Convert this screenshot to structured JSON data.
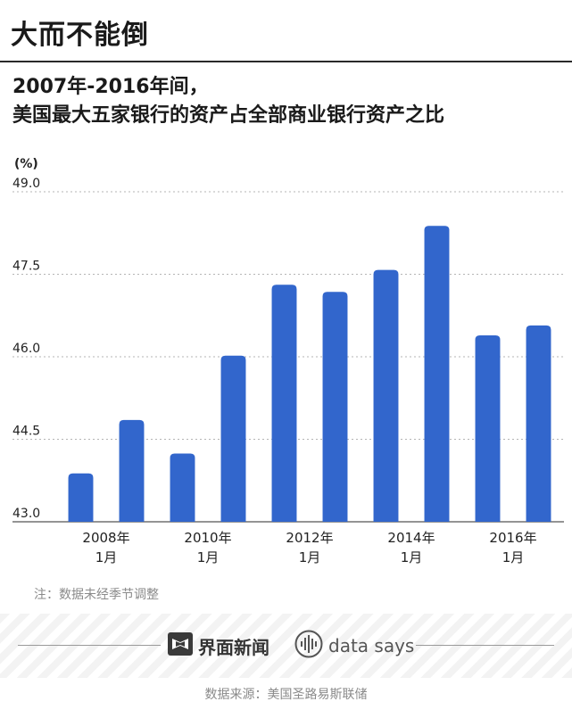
{
  "header": {
    "title": "大而不能倒"
  },
  "subtitle": {
    "line1": "2007年-2016年间，",
    "line2": "美国最大五家银行的资产占全部商业银行资产之比"
  },
  "chart_data": {
    "type": "bar",
    "ylabel": "(%)",
    "ylim": [
      43.0,
      49.0
    ],
    "yticks": [
      "43.0",
      "44.5",
      "46.0",
      "47.5",
      "49.0"
    ],
    "xtick_labels": [
      {
        "year": "2008年",
        "month": "1月",
        "after_bar": 1
      },
      {
        "year": "2010年",
        "month": "1月",
        "after_bar": 3
      },
      {
        "year": "2012年",
        "month": "1月",
        "after_bar": 5
      },
      {
        "year": "2014年",
        "month": "1月",
        "after_bar": 7
      },
      {
        "year": "2016年",
        "month": "1月",
        "after_bar": 9
      }
    ],
    "values": [
      43.88,
      44.85,
      44.24,
      46.02,
      47.31,
      47.18,
      47.58,
      48.38,
      46.39,
      46.57
    ],
    "bar_color": "#3266cc",
    "grid": true
  },
  "note": "注：数据未经季节调整",
  "footer": {
    "brand1": "界面新闻",
    "brand2": "data says",
    "source": "数据来源：美国圣路易斯联储"
  },
  "icons": [
    "jiemian-logo-icon",
    "waveform-icon"
  ]
}
